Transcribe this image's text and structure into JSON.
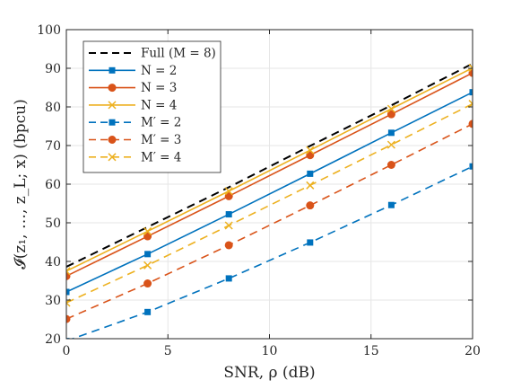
{
  "chart_data": {
    "type": "line",
    "xlabel": "SNR, ρ (dB)",
    "ylabel": "𝓘(z₁, …, z_L; x) (bpcu)",
    "xlim": [
      0,
      20
    ],
    "ylim": [
      20,
      100
    ],
    "x_ticks": [
      0,
      5,
      10,
      15,
      20
    ],
    "y_ticks": [
      20,
      30,
      40,
      50,
      60,
      70,
      80,
      90,
      100
    ],
    "grid": true,
    "legend_position": "top-left",
    "x": [
      0,
      4,
      8,
      12,
      16,
      20
    ],
    "series": [
      {
        "name": "Full (M = 8)",
        "color": "#000000",
        "dash": "dashed",
        "marker": "none",
        "values": [
          38.6,
          48.9,
          59.2,
          69.9,
          80.4,
          91.2
        ]
      },
      {
        "name": "N = 2",
        "color": "#0072BD",
        "dash": "solid",
        "marker": "square",
        "values": [
          32.1,
          41.9,
          52.2,
          62.7,
          73.3,
          83.8
        ]
      },
      {
        "name": "N = 3",
        "color": "#D95319",
        "dash": "solid",
        "marker": "circle",
        "values": [
          36.2,
          46.5,
          56.9,
          67.5,
          78.1,
          88.8
        ]
      },
      {
        "name": "N = 4",
        "color": "#EDB120",
        "dash": "solid",
        "marker": "x",
        "values": [
          37.5,
          47.8,
          58.2,
          68.8,
          79.5,
          90.1
        ]
      },
      {
        "name": "M′ = 2",
        "color": "#0072BD",
        "dash": "dashed",
        "marker": "square",
        "values": [
          19.4,
          26.9,
          35.6,
          44.9,
          54.6,
          64.6
        ]
      },
      {
        "name": "M′ = 3",
        "color": "#D95319",
        "dash": "dashed",
        "marker": "circle",
        "values": [
          25.1,
          34.3,
          44.2,
          54.5,
          65.0,
          75.6
        ]
      },
      {
        "name": "M′ = 4",
        "color": "#EDB120",
        "dash": "dashed",
        "marker": "x",
        "values": [
          29.3,
          39.0,
          49.3,
          59.7,
          70.2,
          80.8
        ]
      }
    ]
  }
}
